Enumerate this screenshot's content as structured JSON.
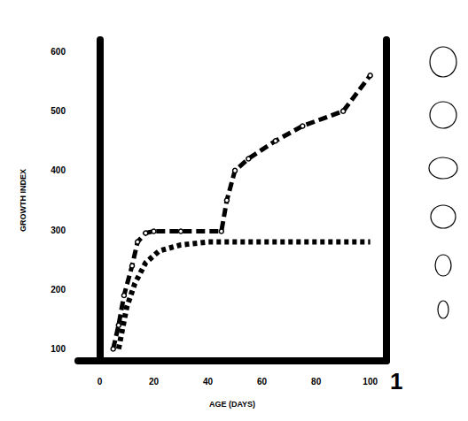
{
  "chart_data": {
    "type": "line",
    "x_label": "AGE (DAYS)",
    "y_label": "GROWTH INDEX",
    "annotations": [
      "1"
    ],
    "xlim": [
      -8,
      106
    ],
    "xticks": [
      0,
      20,
      40,
      60,
      80,
      100
    ],
    "ylim": [
      80,
      620
    ],
    "yticks": [
      100,
      200,
      300,
      400,
      500,
      600
    ],
    "grid": false,
    "series": [
      {
        "color": "#000000",
        "marker": "circle",
        "line_style": "dashed",
        "x": [
          5,
          7,
          9,
          12,
          14,
          17,
          20,
          30,
          45,
          47,
          50,
          55,
          65,
          75,
          90,
          100
        ],
        "values": [
          100,
          140,
          190,
          240,
          280,
          295,
          298,
          298,
          298,
          350,
          400,
          420,
          450,
          475,
          500,
          560
        ]
      },
      {
        "color": "#000000",
        "marker": "none",
        "line_style": "dotted",
        "x": [
          7,
          10,
          13,
          17,
          22,
          30,
          40,
          50,
          100
        ],
        "values": [
          100,
          170,
          210,
          245,
          265,
          275,
          280,
          280,
          280
        ]
      }
    ]
  }
}
